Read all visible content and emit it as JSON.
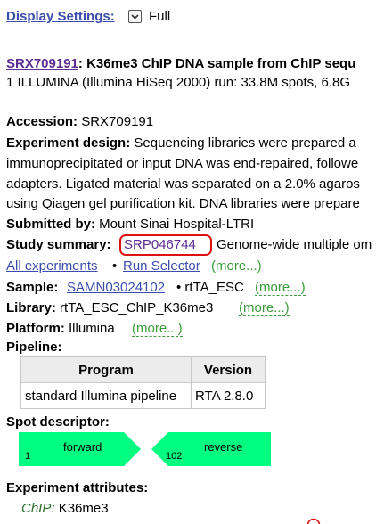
{
  "display_settings": {
    "label": "Display Settings:",
    "value": "Full"
  },
  "header": {
    "accession_link": "SRX709191",
    "title": ": K36me3 ChIP DNA sample from ChIP sequ",
    "run_summary": "1 ILLUMINA (Illumina HiSeq 2000) run: 33.8M spots, 6.8G"
  },
  "accession": {
    "label": "Accession:",
    "value": "SRX709191"
  },
  "experiment_design": {
    "label": "Experiment design:",
    "line1": "Sequencing libraries were prepared a",
    "line2": "immunoprecipitated or input DNA was end-repaired, followe",
    "line3": "adapters. Ligated material was separated on a 2.0% agaros",
    "line4": "using Qiagen gel purification kit. DNA libraries were prepare"
  },
  "submitted_by": {
    "label": "Submitted by:",
    "value": "Mount Sinai Hospital-LTRI"
  },
  "study_summary": {
    "label": "Study summary:",
    "link": "SRP046744",
    "text": "Genome-wide multiple om"
  },
  "experiment_links": {
    "all_experiments": "All experiments",
    "bullet": "•",
    "run_selector": "Run Selector",
    "more": "(more...)"
  },
  "sample": {
    "label": "Sample:",
    "link": "SAMN03024102",
    "extra": "• rtTA_ESC",
    "more": "(more...)"
  },
  "library": {
    "label": "Library:",
    "value": "rtTA_ESC_ChIP_K36me3",
    "more": "(more...)"
  },
  "platform": {
    "label": "Platform:",
    "value": "Illumina",
    "more": "(more...)"
  },
  "pipeline": {
    "label": "Pipeline:",
    "headers": [
      "Program",
      "Version"
    ],
    "rows": [
      [
        "standard Illumina pipeline",
        "RTA 2.8.0"
      ]
    ]
  },
  "spot_descriptor": {
    "label": "Spot descriptor:",
    "forward_label": "forward",
    "forward_index": "1",
    "reverse_label": "reverse",
    "reverse_index": "102",
    "color": "#00ff80"
  },
  "experiment_attributes": {
    "label": "Experiment attributes:",
    "key": "ChIP:",
    "value": "K36me3"
  },
  "colors": {
    "link": "#3a4dab",
    "visited_link": "#5d2d91",
    "more_link": "#3c9a3c",
    "highlight": "#dd1111"
  }
}
